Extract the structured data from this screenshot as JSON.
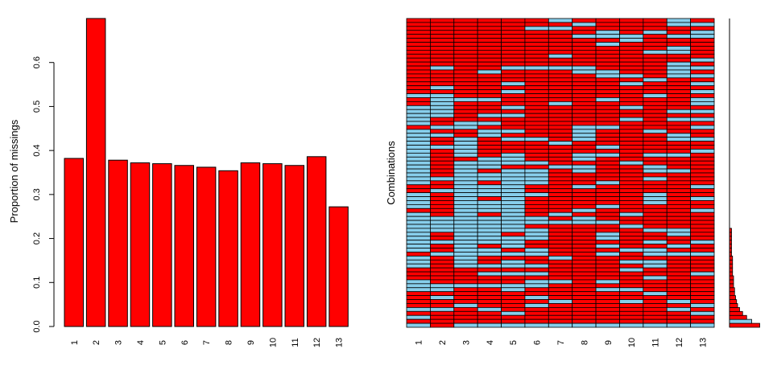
{
  "colors": {
    "missing": "#FF0000",
    "observed": "#87CEEB",
    "stroke": "#000000",
    "background": "#FFFFFF"
  },
  "chart_data": [
    {
      "type": "bar",
      "title": "",
      "xlabel": "",
      "ylabel": "Proportion of missings",
      "categories": [
        "1",
        "2",
        "3",
        "4",
        "5",
        "6",
        "7",
        "8",
        "9",
        "10",
        "11",
        "12",
        "13"
      ],
      "values": [
        0.382,
        0.7,
        0.378,
        0.372,
        0.37,
        0.366,
        0.362,
        0.354,
        0.372,
        0.37,
        0.366,
        0.386,
        0.272
      ],
      "ylim": [
        0,
        0.7
      ],
      "yticks": [
        "0.0",
        "0.1",
        "0.2",
        "0.3",
        "0.4",
        "0.5",
        "0.6"
      ],
      "color": "#FF0000",
      "grid": false
    },
    {
      "type": "heatmap",
      "title": "",
      "xlabel": "",
      "ylabel": "Combinations",
      "columns": [
        "1",
        "2",
        "3",
        "4",
        "5",
        "6",
        "7",
        "8",
        "9",
        "10",
        "11",
        "12",
        "13"
      ],
      "cell_values": [
        "observed",
        "missing"
      ],
      "combination_frequencies": [
        0.03,
        0.022,
        0.017,
        0.013,
        0.01,
        0.008,
        0.007,
        0.006,
        0.005,
        0.005,
        0.004,
        0.004,
        0.004,
        0.003,
        0.003,
        0.003,
        0.003,
        0.003,
        0.002,
        0.002,
        0.002,
        0.002,
        0.002,
        0.002,
        0.002
      ],
      "grid": false
    }
  ]
}
